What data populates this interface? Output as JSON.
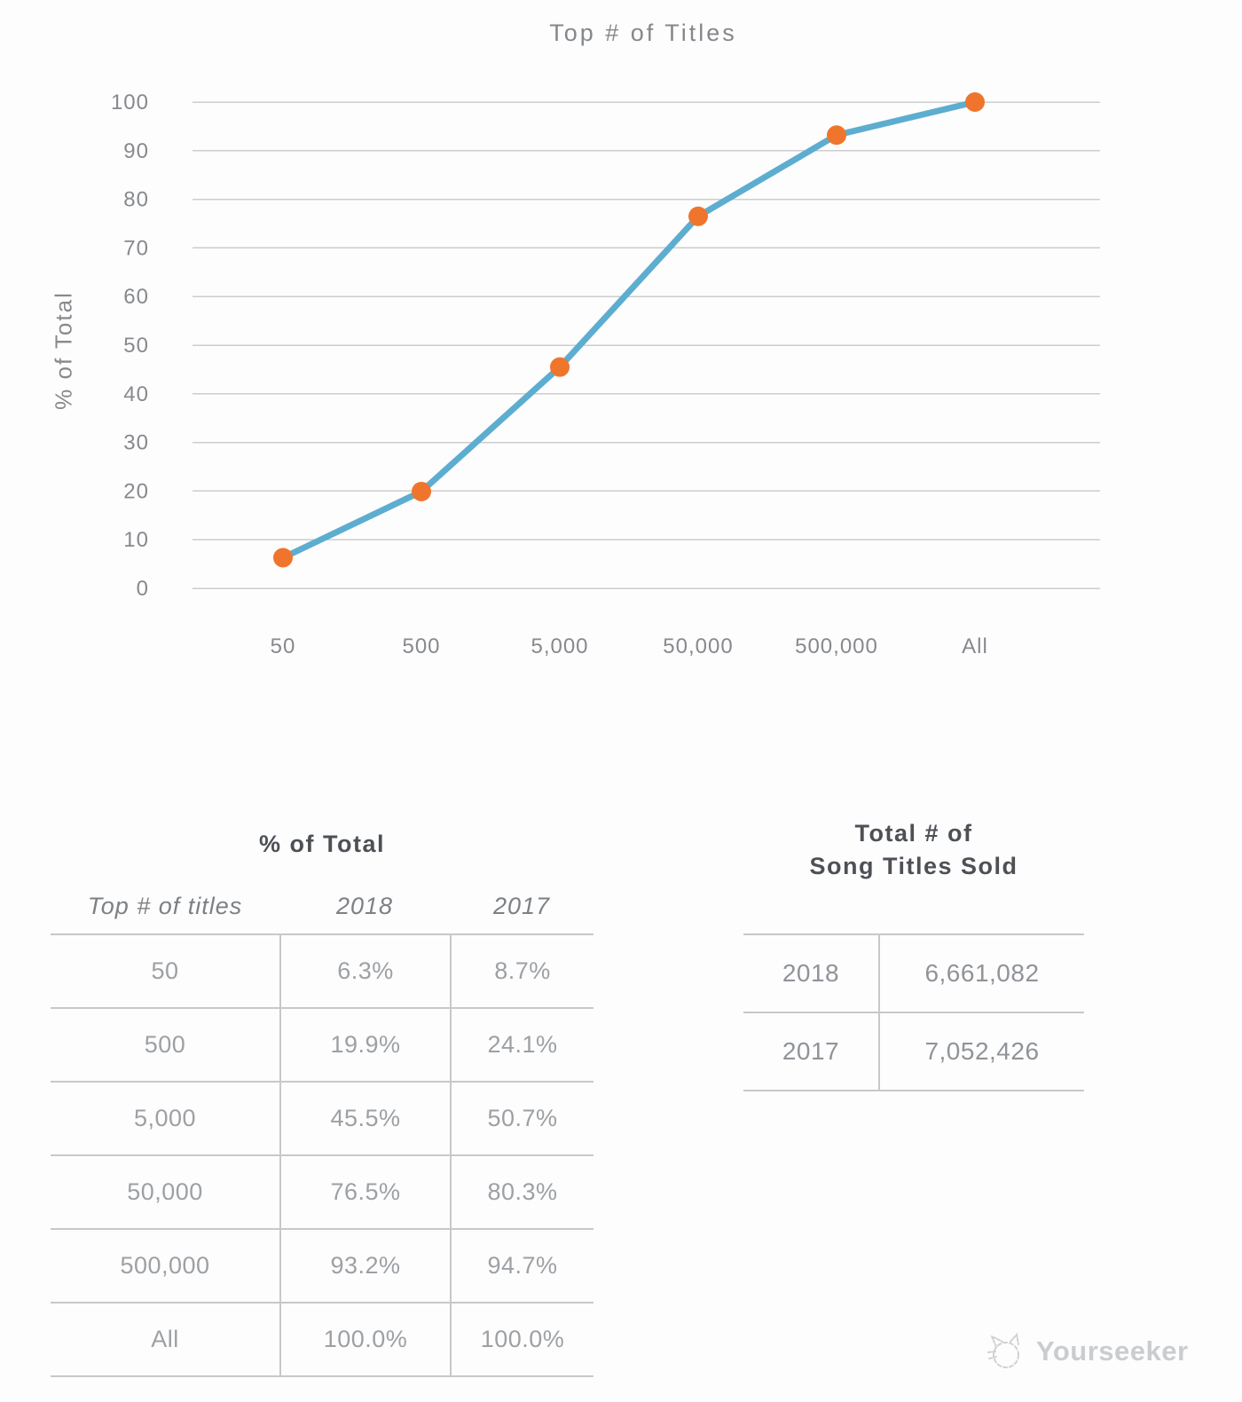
{
  "page": {
    "background": "#fdfdfd"
  },
  "chart_data": {
    "type": "line",
    "title": "Top # of Titles",
    "xlabel": "",
    "ylabel": "% of Total",
    "categories": [
      "50",
      "500",
      "5,000",
      "50,000",
      "500,000",
      "All"
    ],
    "series": [
      {
        "name": "2018",
        "values": [
          6.3,
          19.9,
          45.5,
          76.5,
          93.2,
          100.0
        ]
      }
    ],
    "ylim": [
      0,
      100
    ],
    "ytick_step": 10,
    "grid": "horizontal-only",
    "legend": "none",
    "line_color": "#5dadd0",
    "marker_color": "#f0752c"
  },
  "tables": {
    "percent_of_total": {
      "title": "% of Total",
      "columns": [
        "Top # of titles",
        "2018",
        "2017"
      ],
      "rows": [
        [
          "50",
          "6.3%",
          "8.7%"
        ],
        [
          "500",
          "19.9%",
          "24.1%"
        ],
        [
          "5,000",
          "45.5%",
          "50.7%"
        ],
        [
          "50,000",
          "76.5%",
          "80.3%"
        ],
        [
          "500,000",
          "93.2%",
          "94.7%"
        ],
        [
          "All",
          "100.0%",
          "100.0%"
        ]
      ]
    },
    "titles_sold": {
      "title_line1": "Total # of",
      "title_line2": "Song Titles Sold",
      "rows": [
        [
          "2018",
          "6,661,082"
        ],
        [
          "2017",
          "7,052,426"
        ]
      ]
    }
  },
  "watermark": {
    "text": "Yourseeker",
    "icon": "cat-sketch-icon"
  }
}
